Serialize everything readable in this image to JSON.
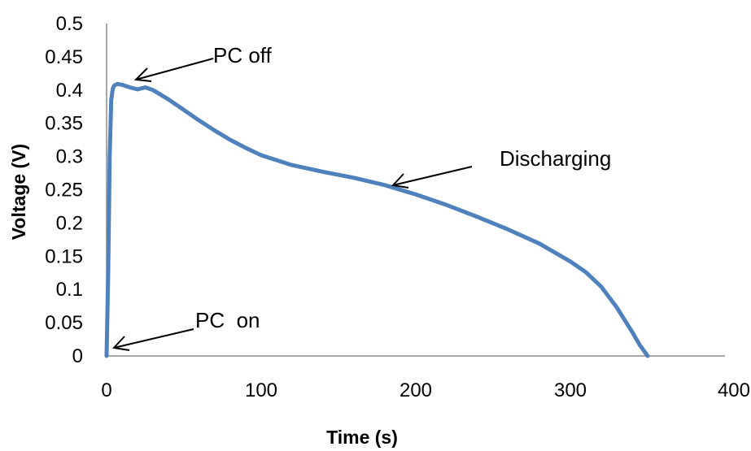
{
  "chart_data": {
    "type": "line",
    "title": "",
    "xlabel": "Time (s)",
    "ylabel": "Voltage (V)",
    "xlim": [
      0,
      400
    ],
    "ylim": [
      0,
      0.5
    ],
    "x_ticks": [
      "0",
      "100",
      "200",
      "300",
      "400"
    ],
    "y_ticks": [
      "0",
      "0.05",
      "0.1",
      "0.15",
      "0.2",
      "0.25",
      "0.3",
      "0.35",
      "0.4",
      "0.45",
      "0.5"
    ],
    "grid": false,
    "legend": "none",
    "series_color": "#4f81bd",
    "series": [
      {
        "x": [
          0,
          1,
          2,
          3,
          4,
          5,
          7,
          10,
          15,
          20,
          25,
          30,
          40,
          50,
          60,
          70,
          80,
          90,
          100,
          120,
          140,
          160,
          180,
          200,
          220,
          240,
          260,
          280,
          300,
          310,
          320,
          330,
          340,
          345,
          350
        ],
        "y": [
          0,
          0.12,
          0.3,
          0.385,
          0.402,
          0.407,
          0.409,
          0.408,
          0.404,
          0.401,
          0.404,
          0.4,
          0.386,
          0.37,
          0.354,
          0.339,
          0.325,
          0.313,
          0.302,
          0.287,
          0.277,
          0.268,
          0.257,
          0.243,
          0.227,
          0.209,
          0.19,
          0.169,
          0.142,
          0.126,
          0.104,
          0.073,
          0.036,
          0.016,
          0
        ]
      }
    ],
    "annotations": [
      {
        "text": "PC off",
        "target": [
          7,
          0.409
        ]
      },
      {
        "text": "Discharging",
        "target": [
          185,
          0.258
        ]
      },
      {
        "text": "PC  on",
        "target": [
          2,
          0.012
        ]
      }
    ]
  }
}
